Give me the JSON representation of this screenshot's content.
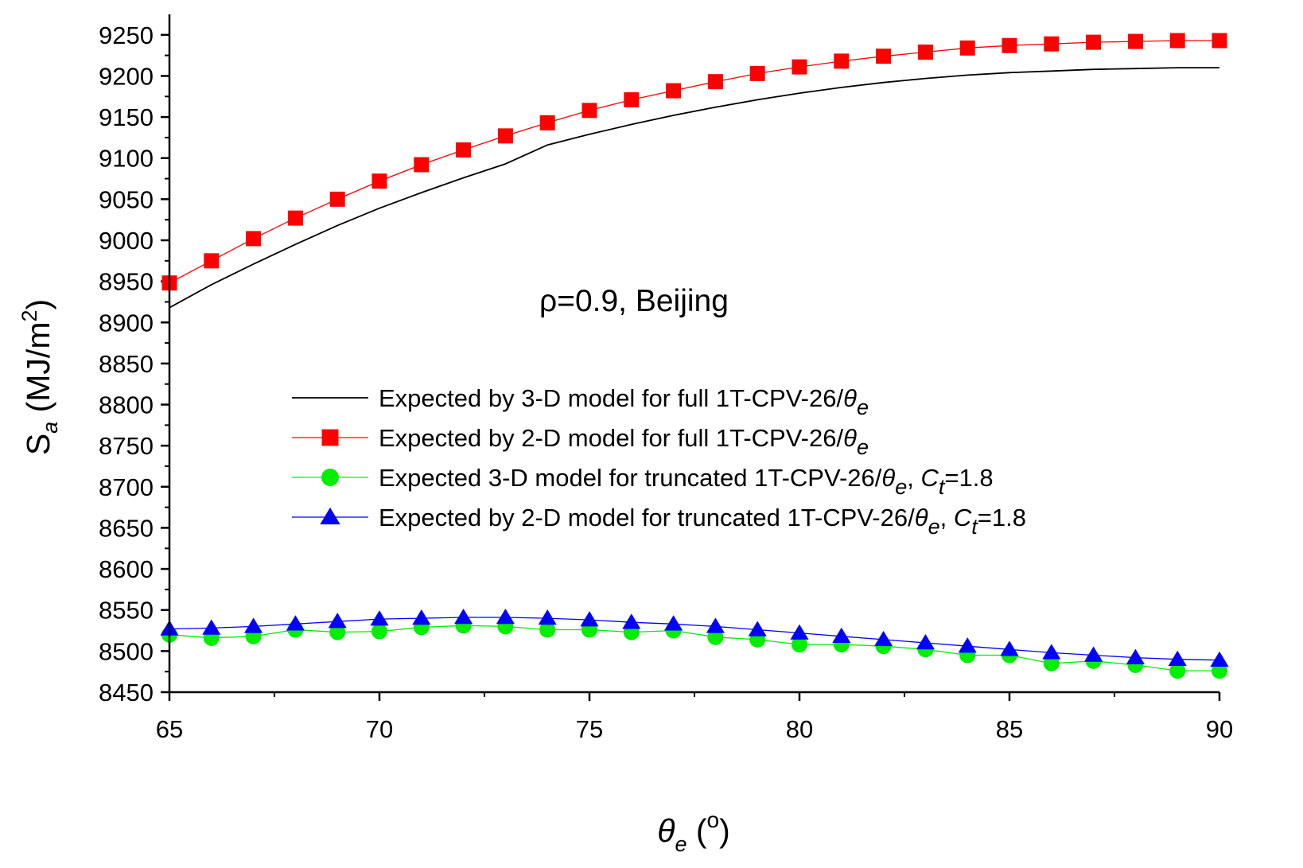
{
  "chart_data": {
    "type": "line",
    "xlabel": {
      "symbol": "θ",
      "sub": "e",
      "unit": "o"
    },
    "ylabel": {
      "symbol": "S",
      "sub": "a",
      "unit": "(MJ/m",
      "sup": "2",
      "close": ")"
    },
    "xlim": [
      65,
      90
    ],
    "ylim": [
      8450,
      9275
    ],
    "xticks": [
      65,
      70,
      75,
      80,
      85,
      90
    ],
    "yticks": [
      8450,
      8500,
      8550,
      8600,
      8650,
      8700,
      8750,
      8800,
      8850,
      8900,
      8950,
      9000,
      9050,
      9100,
      9150,
      9200,
      9250
    ],
    "annotation": "ρ=0.9, Beijing",
    "x": [
      65,
      66,
      67,
      68,
      69,
      70,
      71,
      72,
      73,
      74,
      75,
      76,
      77,
      78,
      79,
      80,
      81,
      82,
      83,
      84,
      85,
      86,
      87,
      88,
      89,
      90
    ],
    "series": [
      {
        "name": "Expected by 3-D model for full 1T-CPV-26/θe",
        "legend_parts": [
          "Expected by 3-D model for full 1T-CPV-26/",
          "θ",
          "e",
          ""
        ],
        "color": "#000000",
        "marker": "none",
        "values": [
          8918,
          8946,
          8971,
          8995,
          9018,
          9039,
          9058,
          9076,
          9093,
          9116,
          9129,
          9141,
          9152,
          9162,
          9171,
          9179,
          9186,
          9192,
          9197,
          9201,
          9204,
          9206,
          9208,
          9209,
          9210,
          9210
        ]
      },
      {
        "name": "Expected by 2-D model for full 1T-CPV-26/θe",
        "legend_parts": [
          "Expected by 2-D model for full 1T-CPV-26/",
          "θ",
          "e",
          ""
        ],
        "color": "#ff0000",
        "marker": "square",
        "values": [
          8948,
          8975,
          9002,
          9027,
          9050,
          9072,
          9092,
          9110,
          9127,
          9143,
          9158,
          9171,
          9182,
          9193,
          9203,
          9211,
          9218,
          9224,
          9229,
          9234,
          9237,
          9239,
          9241,
          9242,
          9243,
          9243
        ]
      },
      {
        "name": "Expected 3-D model for truncated 1T-CPV-26/θe, Ct=1.8",
        "legend_parts": [
          "Expected 3-D model for truncated 1T-CPV-26/",
          "θ",
          "e",
          ", ",
          "C",
          "t",
          "=1.8"
        ],
        "color": "#00ee00",
        "marker": "circle",
        "values": [
          8520,
          8516,
          8518,
          8526,
          8523,
          8524,
          8529,
          8531,
          8530,
          8526,
          8526,
          8523,
          8525,
          8517,
          8514,
          8508,
          8508,
          8506,
          8502,
          8495,
          8495,
          8485,
          8488,
          8483,
          8476,
          8476
        ]
      },
      {
        "name": "Expected by 2-D model for truncated 1T-CPV-26/θe, Ct=1.8",
        "legend_parts": [
          "Expected by 2-D model for truncated 1T-CPV-26/",
          "θ",
          "e",
          ", ",
          "C",
          "t",
          "=1.8"
        ],
        "color": "#0000ff",
        "marker": "triangle",
        "values": [
          8527,
          8528,
          8530,
          8533,
          8536,
          8539,
          8540,
          8541,
          8541,
          8540,
          8538,
          8535,
          8533,
          8530,
          8526,
          8522,
          8518,
          8514,
          8510,
          8506,
          8502,
          8498,
          8495,
          8492,
          8490,
          8489
        ]
      }
    ]
  }
}
